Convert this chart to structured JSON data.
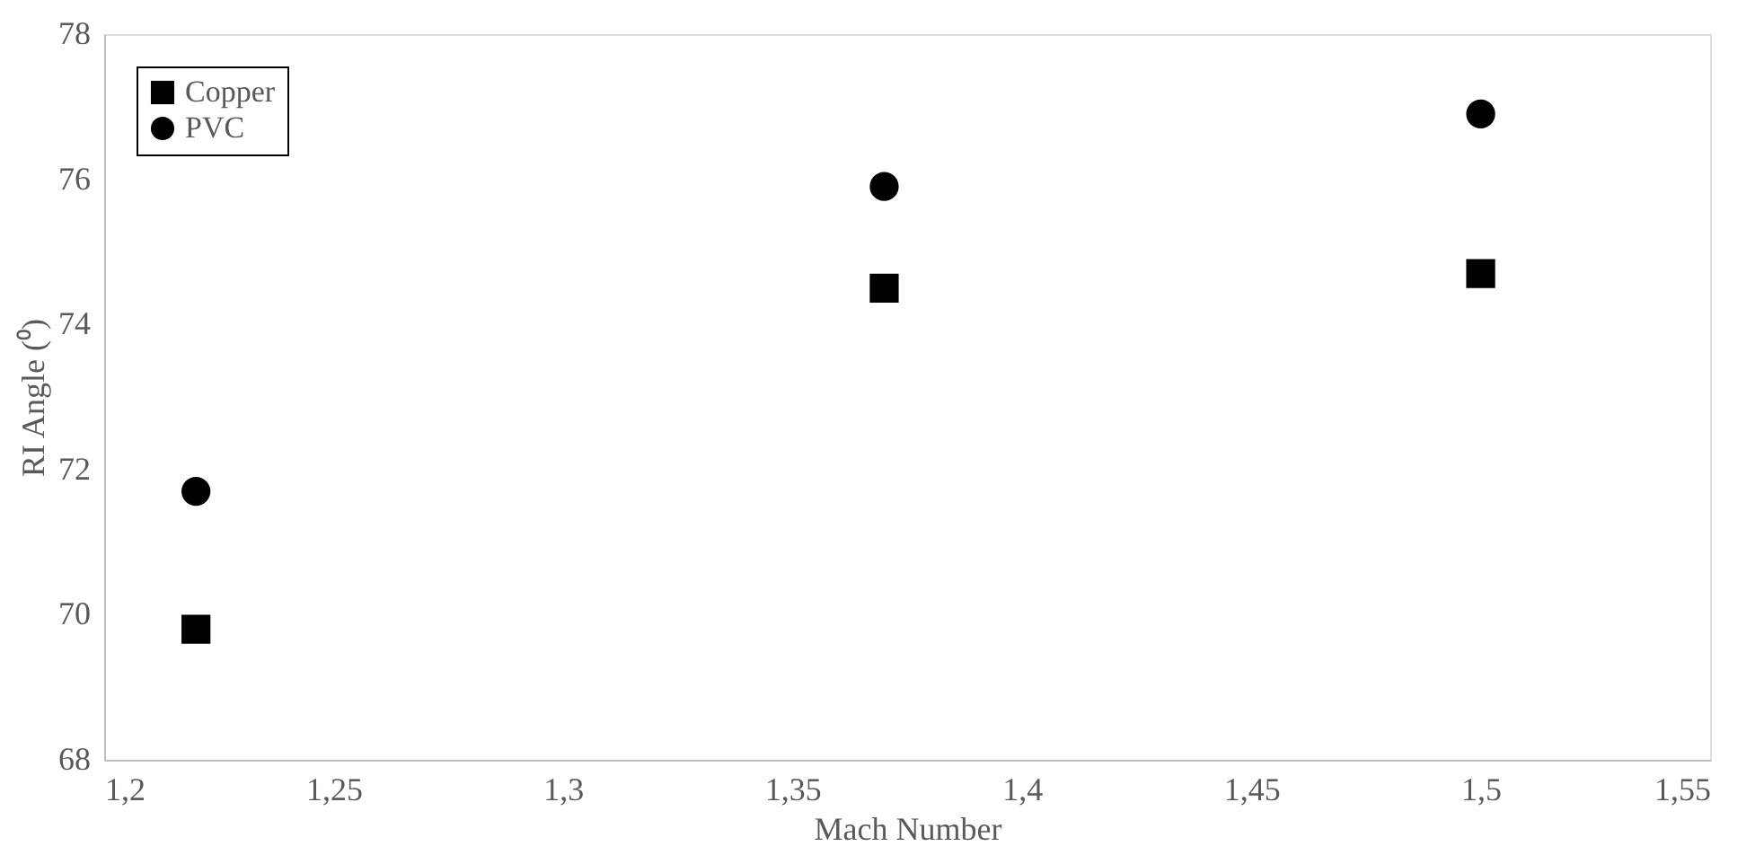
{
  "chart_data": {
    "type": "scatter",
    "xlabel": "Mach Number",
    "ylabel": "RI Angle (⁰)",
    "x": [
      1.22,
      1.37,
      1.5
    ],
    "series": [
      {
        "name": "Copper",
        "color": "#000000",
        "marker": "square",
        "values": [
          69.8,
          74.5,
          74.7
        ]
      },
      {
        "name": "PVC",
        "color": "#000000",
        "marker": "circle",
        "values": [
          71.7,
          75.9,
          76.9
        ]
      }
    ],
    "xlim": [
      1.2,
      1.55
    ],
    "xticks": [
      {
        "value": 1.2,
        "label": "1,2"
      },
      {
        "value": 1.25,
        "label": "1,25"
      },
      {
        "value": 1.3,
        "label": "1,3"
      },
      {
        "value": 1.35,
        "label": "1,35"
      },
      {
        "value": 1.4,
        "label": "1,4"
      },
      {
        "value": 1.45,
        "label": "1,45"
      },
      {
        "value": 1.5,
        "label": "1,5"
      },
      {
        "value": 1.55,
        "label": "1,55"
      }
    ],
    "ylim": [
      68,
      78
    ],
    "yticks": [
      68,
      70,
      72,
      74,
      76,
      78
    ],
    "grid": false,
    "legend": "top left"
  }
}
